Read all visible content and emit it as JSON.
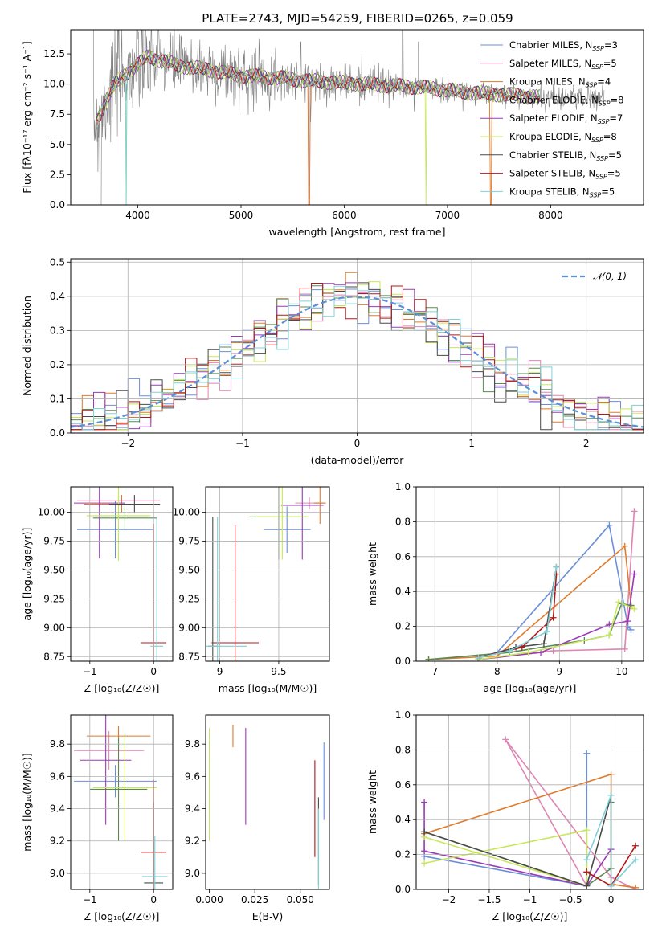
{
  "figure": {
    "title": "PLATE=2743, MJD=54259, FIBERID=0265, z=0.059"
  },
  "colors": {
    "Chabrier MILES": "#6a8fd8",
    "Salpeter MILES": "#e084b4",
    "Kroupa MILES": "#e07a2a",
    "Chabrier ELODIE": "#5a8a50",
    "Salpeter ELODIE": "#9a3ab8",
    "Kroupa ELODIE": "#c8e85a",
    "Chabrier STELIB": "#4a4a4a",
    "Salpeter STELIB": "#b01818",
    "Kroupa STELIB": "#80d0d8",
    "data": "#808080",
    "normal": "#5b8fd8"
  },
  "chart_data": [
    {
      "id": "spectrum",
      "type": "line",
      "xlabel": "wavelength [Angstrom, rest frame]",
      "ylabel": "Flux [fλ10⁻¹⁷ erg cm⁻² s⁻¹ A⁻¹]",
      "xlim": [
        3350,
        8900
      ],
      "ylim": [
        0,
        14.5
      ],
      "xticks": [
        4000,
        5000,
        6000,
        7000,
        8000
      ],
      "yticks": [
        0.0,
        2.5,
        5.0,
        7.5,
        10.0,
        12.5
      ],
      "grid": false,
      "legend_position": "top-right",
      "legend": [
        "Chabrier MILES, N_SSP=3",
        "Salpeter MILES, N_SSP=5",
        "Kroupa MILES, N_SSP=4",
        "Chabrier ELODIE, N_SSP=8",
        "Salpeter ELODIE, N_SSP=7",
        "Kroupa ELODIE, N_SSP=8",
        "Chabrier STELIB, N_SSP=5",
        "Salpeter STELIB, N_SSP=5",
        "Kroupa STELIB, N_SSP=5"
      ],
      "legend_models": [
        "Chabrier MILES",
        "Salpeter MILES",
        "Kroupa MILES",
        "Chabrier ELODIE",
        "Salpeter ELODIE",
        "Kroupa ELODIE",
        "Chabrier STELIB",
        "Salpeter STELIB",
        "Kroupa STELIB"
      ],
      "continuum_model": {
        "x": [
          3600,
          3650,
          3700,
          3800,
          3900,
          4000,
          4100,
          4200,
          4300,
          4400,
          4600,
          4800,
          5000,
          5200,
          5400,
          5600,
          5800,
          6000,
          6200,
          6400,
          6600,
          6800,
          7000,
          7200,
          7400,
          7600,
          7800,
          7900
        ],
        "y": [
          7.0,
          7.8,
          8.8,
          10.2,
          11.0,
          11.6,
          12.3,
          12.0,
          11.8,
          11.5,
          11.3,
          11.0,
          10.7,
          10.6,
          10.5,
          10.3,
          10.2,
          10.1,
          10.0,
          9.9,
          9.8,
          9.7,
          9.5,
          9.3,
          9.2,
          9.1,
          9.0,
          8.9
        ]
      },
      "data_span": [
        3570,
        8520
      ]
    },
    {
      "id": "residuals",
      "type": "line",
      "xlabel": "(data-model)/error",
      "ylabel": "Normed distribution",
      "xlim": [
        -2.5,
        2.5
      ],
      "ylim": [
        0,
        0.51
      ],
      "xticks": [
        -2,
        -1,
        0,
        1,
        2
      ],
      "yticks": [
        0.0,
        0.1,
        0.2,
        0.3,
        0.4,
        0.5
      ],
      "grid": true,
      "legend_position": "top-right",
      "legend": [
        "𝒩(0, 1)"
      ],
      "bin_width": 0.1
    },
    {
      "id": "age_vs_Z",
      "type": "scatter",
      "xlabel": "Z [log₁₀(Z/Z☉)]",
      "ylabel": "age  [log₁₀(age/yr)]",
      "xlim": [
        -1.3,
        0.3
      ],
      "ylim": [
        8.71,
        10.22
      ],
      "xticks": [
        -1,
        0
      ],
      "yticks": [
        8.75,
        9.0,
        9.25,
        9.5,
        9.75,
        10.0
      ],
      "grid": true,
      "points": [
        {
          "model": "Chabrier MILES",
          "x": -0.6,
          "y": 9.85,
          "xerr": 0.6,
          "yerr": 0.25
        },
        {
          "model": "Salpeter MILES",
          "x": -0.55,
          "y": 10.1,
          "xerr": 0.65,
          "yerr": 0.05
        },
        {
          "model": "Kroupa MILES",
          "x": -0.5,
          "y": 10.07,
          "xerr": 0.6,
          "yerr": 0.08
        },
        {
          "model": "Chabrier ELODIE",
          "x": -0.45,
          "y": 9.95,
          "xerr": 0.5,
          "yerr": 0.1
        },
        {
          "model": "Salpeter ELODIE",
          "x": -0.85,
          "y": 10.08,
          "xerr": 0.4,
          "yerr": 0.48
        },
        {
          "model": "Kroupa ELODIE",
          "x": -0.55,
          "y": 9.97,
          "xerr": 0.5,
          "yerr": 0.39
        },
        {
          "model": "Chabrier STELIB",
          "x": -0.3,
          "y": 10.07,
          "xerr": 0.4,
          "yerr": 0.08
        },
        {
          "model": "Salpeter STELIB",
          "x": 0.0,
          "y": 8.87,
          "xerr": 0.2,
          "yerr": 1.03
        },
        {
          "model": "Kroupa STELIB",
          "x": 0.05,
          "y": 8.84,
          "xerr": 0.1,
          "yerr": 1.11
        }
      ]
    },
    {
      "id": "age_vs_mass",
      "type": "scatter",
      "xlabel": "mass [log₁₀(M/M☉)]",
      "ylabel": "",
      "xlim": [
        8.88,
        9.93
      ],
      "ylim": [
        8.71,
        10.22
      ],
      "xticks": [
        9.0,
        9.5
      ],
      "yticks": [
        8.75,
        9.0,
        9.25,
        9.5,
        9.75,
        10.0
      ],
      "grid": true,
      "points": [
        {
          "model": "Chabrier MILES",
          "x": 9.57,
          "y": 9.85,
          "xerr": 0.2,
          "yerr": 0.2
        },
        {
          "model": "Salpeter MILES",
          "x": 9.76,
          "y": 10.08,
          "xerr": 0.12,
          "yerr": 0.05
        },
        {
          "model": "Kroupa MILES",
          "x": 9.85,
          "y": 10.08,
          "xerr": 0.05,
          "yerr": 0.18
        },
        {
          "model": "Chabrier ELODIE",
          "x": 9.5,
          "y": 9.96,
          "xerr": 0.25,
          "yerr": 0.37
        },
        {
          "model": "Salpeter ELODIE",
          "x": 9.7,
          "y": 10.06,
          "xerr": 0.18,
          "yerr": 0.47
        },
        {
          "model": "Kroupa ELODIE",
          "x": 9.53,
          "y": 9.96,
          "xerr": 0.22,
          "yerr": 0.37
        },
        {
          "model": "Chabrier STELIB",
          "x": 8.94,
          "y": 8.84,
          "xerr": 0.04,
          "yerr": 1.12
        },
        {
          "model": "Salpeter STELIB",
          "x": 9.13,
          "y": 8.87,
          "xerr": 0.2,
          "yerr": 1.02
        },
        {
          "model": "Kroupa STELIB",
          "x": 8.98,
          "y": 8.84,
          "xerr": 0.25,
          "yerr": 1.12
        }
      ]
    },
    {
      "id": "mass_weight_vs_age",
      "type": "line",
      "xlabel": "age  [log₁₀(age/yr)]",
      "ylabel": "mass weight",
      "xlim": [
        6.7,
        10.35
      ],
      "ylim": [
        0,
        1.0
      ],
      "xticks": [
        7,
        8,
        9,
        10
      ],
      "yticks": [
        0.0,
        0.2,
        0.4,
        0.6,
        0.8,
        1.0
      ],
      "grid": true,
      "series": [
        {
          "model": "Chabrier MILES",
          "x": [
            7.7,
            8.0,
            9.8,
            10.1,
            10.15
          ],
          "y": [
            0.02,
            0.05,
            0.78,
            0.2,
            0.18
          ]
        },
        {
          "model": "Salpeter MILES",
          "x": [
            7.7,
            8.9,
            10.05,
            10.2
          ],
          "y": [
            0.01,
            0.06,
            0.07,
            0.86
          ]
        },
        {
          "model": "Kroupa MILES",
          "x": [
            6.9,
            8.0,
            10.05,
            10.15
          ],
          "y": [
            0.01,
            0.03,
            0.66,
            0.32
          ]
        },
        {
          "model": "Chabrier ELODIE",
          "x": [
            6.9,
            8.2,
            9.4,
            9.8,
            10.0,
            10.15
          ],
          "y": [
            0.01,
            0.05,
            0.12,
            0.15,
            0.33,
            0.32
          ]
        },
        {
          "model": "Salpeter ELODIE",
          "x": [
            7.7,
            8.7,
            9.8,
            10.1,
            10.2
          ],
          "y": [
            0.01,
            0.05,
            0.21,
            0.23,
            0.5
          ]
        },
        {
          "model": "Kroupa ELODIE",
          "x": [
            7.7,
            8.5,
            9.8,
            9.95,
            10.2
          ],
          "y": [
            0.01,
            0.05,
            0.15,
            0.34,
            0.3
          ]
        },
        {
          "model": "Chabrier STELIB",
          "x": [
            7.7,
            8.3,
            8.75,
            8.95
          ],
          "y": [
            0.02,
            0.08,
            0.1,
            0.54
          ]
        },
        {
          "model": "Salpeter STELIB",
          "x": [
            7.7,
            8.4,
            8.9,
            8.95
          ],
          "y": [
            0.02,
            0.08,
            0.25,
            0.5
          ]
        },
        {
          "model": "Kroupa STELIB",
          "x": [
            7.7,
            8.2,
            8.8,
            8.95
          ],
          "y": [
            0.02,
            0.06,
            0.17,
            0.54
          ]
        }
      ]
    },
    {
      "id": "mass_vs_Z",
      "type": "scatter",
      "xlabel": "Z [log₁₀(Z/Z☉)]",
      "ylabel": "mass [log₁₀(M/M☉)]",
      "xlim": [
        -1.3,
        0.3
      ],
      "ylim": [
        8.9,
        9.98
      ],
      "xticks": [
        -1,
        0
      ],
      "yticks": [
        9.0,
        9.2,
        9.4,
        9.6,
        9.8
      ],
      "grid": true,
      "points": [
        {
          "model": "Chabrier MILES",
          "x": -0.6,
          "y": 9.57,
          "xerr": 0.65,
          "yerr": 0.1
        },
        {
          "model": "Salpeter MILES",
          "x": -0.7,
          "y": 9.76,
          "xerr": 0.55,
          "yerr": 0.12
        },
        {
          "model": "Kroupa MILES",
          "x": -0.55,
          "y": 9.85,
          "xerr": 0.5,
          "yerr": 0.06
        },
        {
          "model": "Chabrier ELODIE",
          "x": -0.55,
          "y": 9.52,
          "xerr": 0.45,
          "yerr": 0.32
        },
        {
          "model": "Salpeter ELODIE",
          "x": -0.75,
          "y": 9.7,
          "xerr": 0.4,
          "yerr": 0.4
        },
        {
          "model": "Kroupa ELODIE",
          "x": -0.45,
          "y": 9.53,
          "xerr": 0.5,
          "yerr": 0.33
        },
        {
          "model": "Chabrier STELIB",
          "x": 0.0,
          "y": 8.94,
          "xerr": 0.15,
          "yerr": 0.5
        },
        {
          "model": "Salpeter STELIB",
          "x": 0.0,
          "y": 9.13,
          "xerr": 0.2,
          "yerr": 0.45
        },
        {
          "model": "Kroupa STELIB",
          "x": 0.02,
          "y": 8.98,
          "xerr": 0.2,
          "yerr": 0.25
        }
      ]
    },
    {
      "id": "mass_vs_EBV",
      "type": "scatter",
      "xlabel": "E(B-V)",
      "ylabel": "",
      "xlim": [
        -0.002,
        0.066
      ],
      "ylim": [
        8.9,
        9.98
      ],
      "xticks": [
        0.0,
        0.025,
        0.05
      ],
      "xtick_labels": [
        "0.000",
        "0.025",
        "0.050"
      ],
      "yticks": [
        9.0,
        9.2,
        9.4,
        9.6,
        9.8
      ],
      "grid": false,
      "points": [
        {
          "model": "Chabrier MILES",
          "x": 0.063,
          "y": 9.57,
          "xerr": 0.0,
          "yerr": 0.24
        },
        {
          "model": "Salpeter MILES",
          "x": 0.0,
          "y": 9.76,
          "xerr": 0.0,
          "yerr": 0.06
        },
        {
          "model": "Kroupa MILES",
          "x": 0.013,
          "y": 9.85,
          "xerr": 0.0,
          "yerr": 0.07
        },
        {
          "model": "Chabrier ELODIE",
          "x": 0.0,
          "y": 9.52,
          "xerr": 0.0,
          "yerr": 0.3
        },
        {
          "model": "Salpeter ELODIE",
          "x": 0.02,
          "y": 9.6,
          "xerr": 0.0,
          "yerr": 0.3
        },
        {
          "model": "Kroupa ELODIE",
          "x": 0.0,
          "y": 9.55,
          "xerr": 0.0,
          "yerr": 0.35
        },
        {
          "model": "Chabrier STELIB",
          "x": 0.06,
          "y": 9.2,
          "xerr": 0.0,
          "yerr": 0.27
        },
        {
          "model": "Salpeter STELIB",
          "x": 0.058,
          "y": 9.4,
          "xerr": 0.0,
          "yerr": 0.3
        },
        {
          "model": "Kroupa STELIB",
          "x": 0.06,
          "y": 9.15,
          "xerr": 0.0,
          "yerr": 0.25
        }
      ]
    },
    {
      "id": "mass_weight_vs_Z",
      "type": "line",
      "xlabel": "Z [log₁₀(Z/Z☉)]",
      "ylabel": "mass weight",
      "xlim": [
        -2.4,
        0.4
      ],
      "ylim": [
        0,
        1.0
      ],
      "xticks": [
        -2.0,
        -1.5,
        -1.0,
        -0.5,
        0.0
      ],
      "yticks": [
        0.0,
        0.2,
        0.4,
        0.6,
        0.8,
        1.0
      ],
      "grid": true,
      "series": [
        {
          "model": "Chabrier MILES",
          "x": [
            -2.3,
            -0.3,
            -0.3
          ],
          "y": [
            0.19,
            0.02,
            0.78
          ]
        },
        {
          "model": "Salpeter MILES",
          "x": [
            -0.3,
            -1.3,
            0.0,
            0.3
          ],
          "y": [
            0.02,
            0.86,
            0.07,
            0.0
          ]
        },
        {
          "model": "Kroupa MILES",
          "x": [
            -2.3,
            0.0,
            0.0,
            0.3
          ],
          "y": [
            0.32,
            0.66,
            0.03,
            0.01
          ]
        },
        {
          "model": "Chabrier ELODIE",
          "x": [
            -2.3,
            -0.3,
            0.0,
            0.0
          ],
          "y": [
            0.33,
            0.02,
            0.12,
            0.5
          ]
        },
        {
          "model": "Salpeter ELODIE",
          "x": [
            -2.3,
            -2.3,
            -0.3,
            0.0
          ],
          "y": [
            0.5,
            0.22,
            0.02,
            0.23
          ]
        },
        {
          "model": "Kroupa ELODIE",
          "x": [
            -2.3,
            -0.3,
            -0.3,
            -2.3
          ],
          "y": [
            0.15,
            0.34,
            0.02,
            0.3
          ]
        },
        {
          "model": "Chabrier STELIB",
          "x": [
            -2.3,
            -0.3,
            0.0
          ],
          "y": [
            0.33,
            0.02,
            0.54
          ]
        },
        {
          "model": "Salpeter STELIB",
          "x": [
            -0.3,
            0.0,
            0.3
          ],
          "y": [
            0.1,
            0.02,
            0.25
          ]
        },
        {
          "model": "Kroupa STELIB",
          "x": [
            -0.3,
            0.0,
            0.0,
            0.3
          ],
          "y": [
            0.17,
            0.54,
            0.02,
            0.17
          ]
        }
      ]
    }
  ]
}
